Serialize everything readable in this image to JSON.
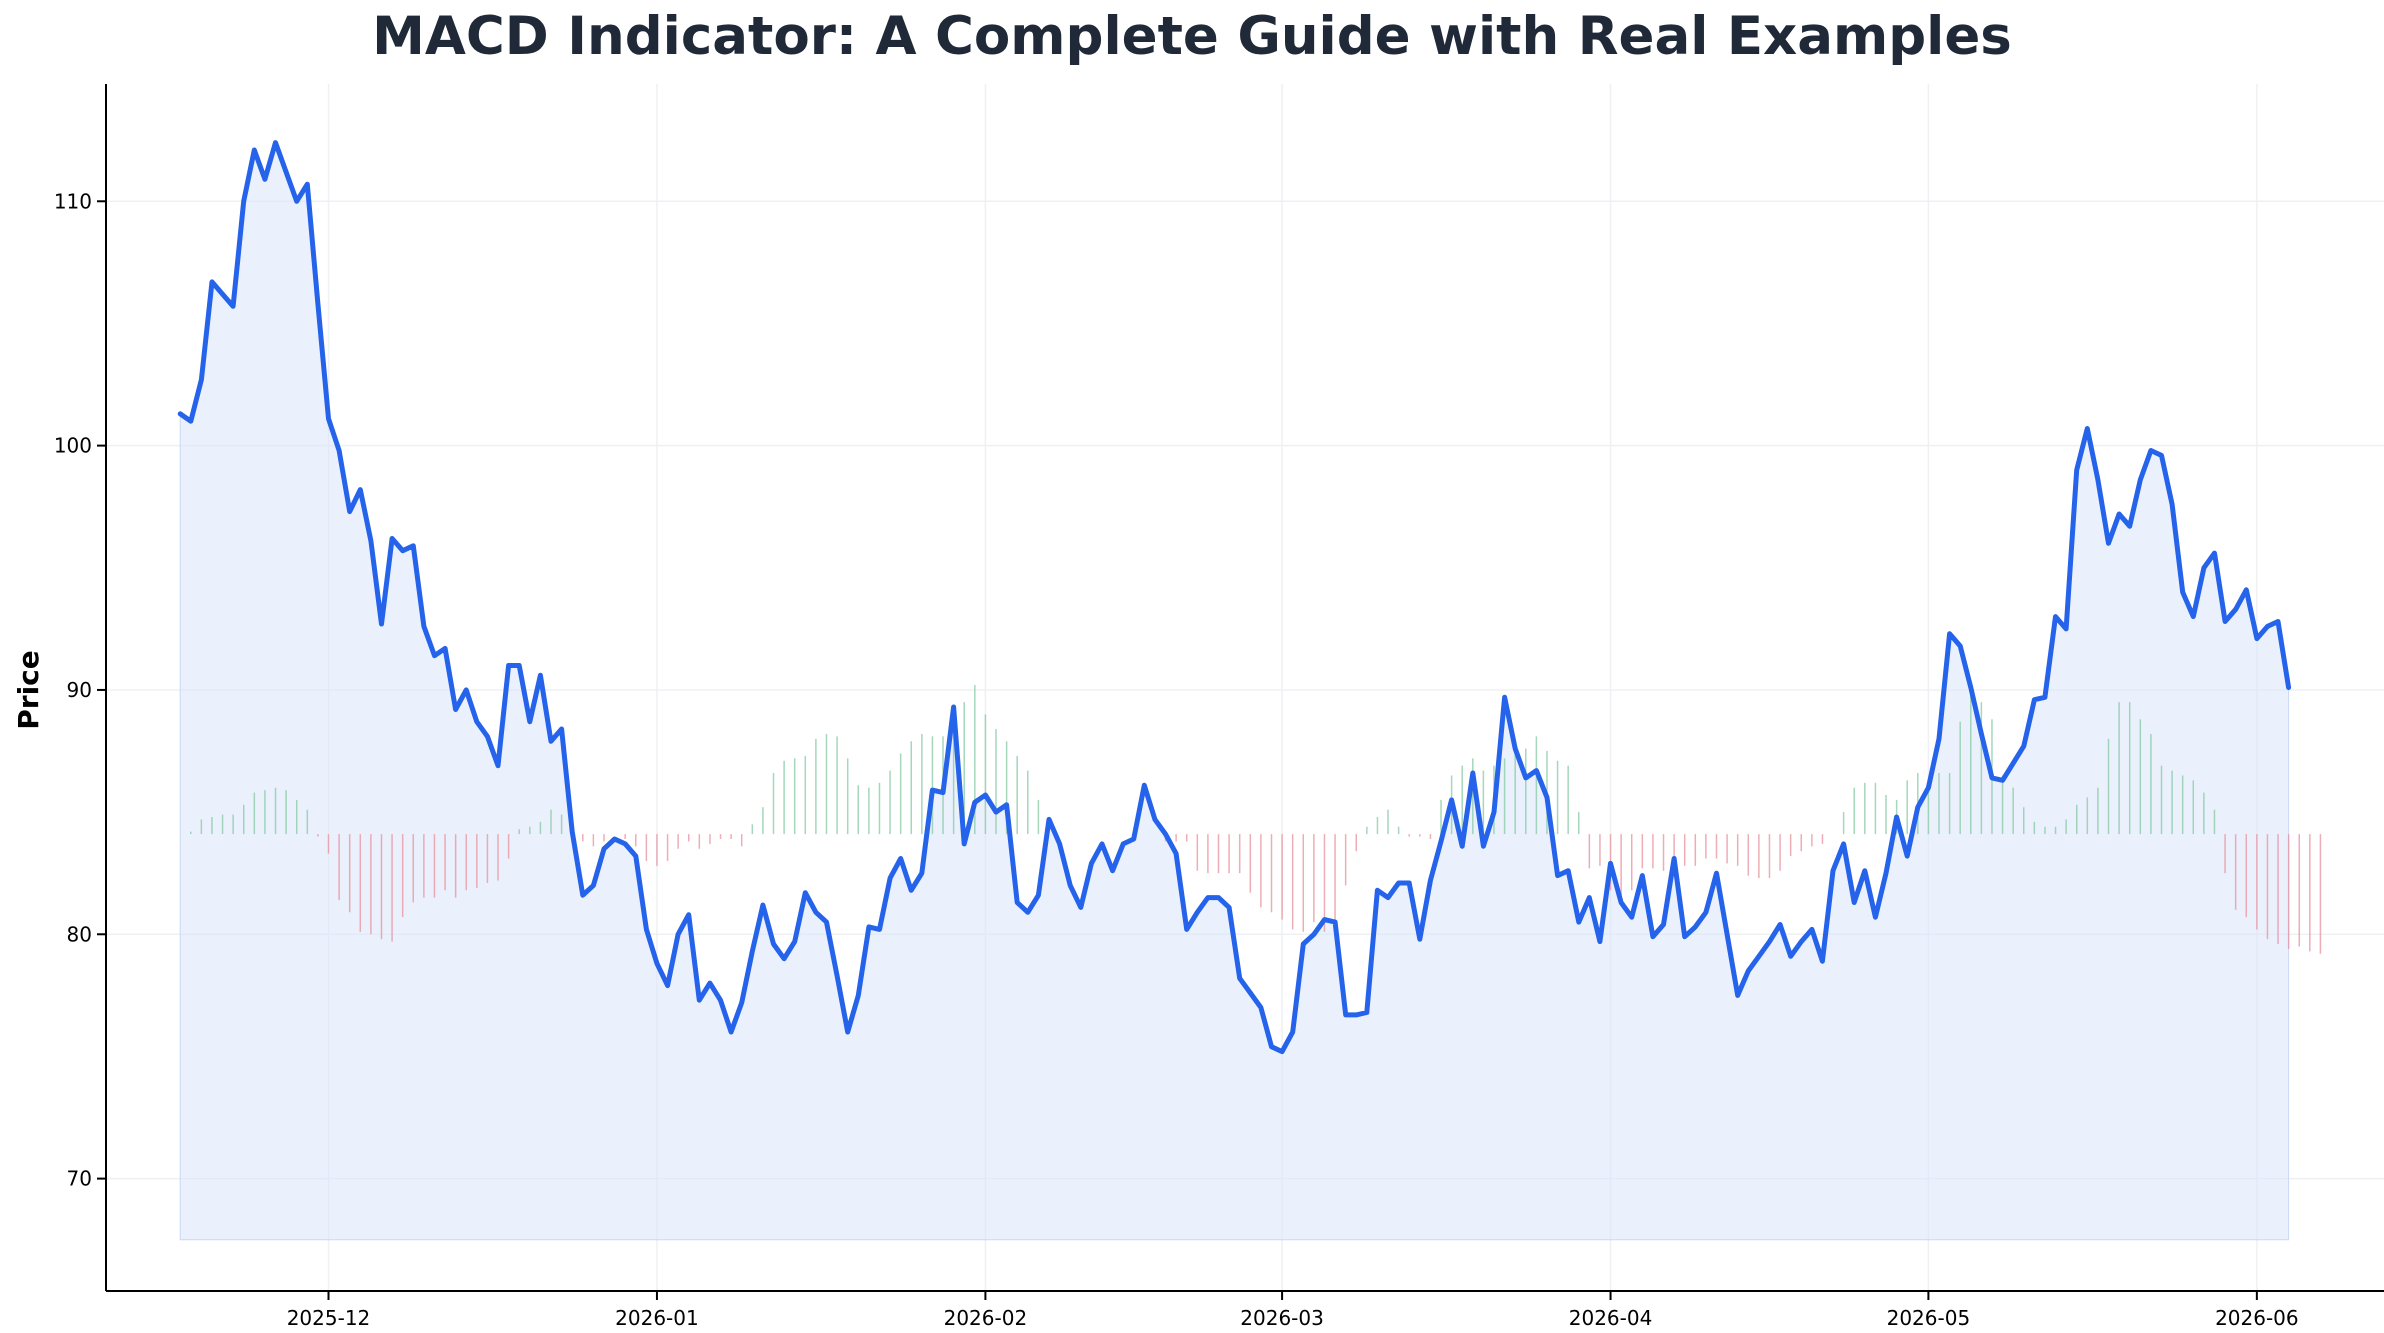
{
  "chart_data": {
    "type": "line",
    "title": "MACD Indicator: A Complete Guide with Real Examples",
    "xlabel": "",
    "ylabel": "Price",
    "grid": true,
    "ylim": [
      65.4,
      114.8
    ],
    "xlim": [
      "2025-11-10",
      "2026-06-13"
    ],
    "y_ticks": [
      70,
      80,
      90,
      100,
      110
    ],
    "x_ticks": [
      "2025-12",
      "2026-01",
      "2026-02",
      "2026-03",
      "2026-04",
      "2026-05",
      "2026-06"
    ],
    "area_baseline": 67.5,
    "histogram_baseline": 84.1,
    "colors": {
      "line": "#2563eb",
      "fill": "#dbe6fa",
      "hist_pos": "#86c9a4",
      "hist_neg": "#e8929d",
      "grid": "#eef0f3"
    },
    "series": [
      {
        "start_date": "2025-11-17",
        "step_days": 1,
        "values": [
          101.3,
          101,
          102.7,
          106.7,
          106.2,
          105.7,
          110,
          112.1,
          110.9,
          112.4,
          111.2,
          110,
          110.7,
          105.8,
          101.1,
          99.8,
          97.3,
          98.2,
          96.1,
          92.7,
          96.2,
          95.7,
          95.9,
          92.6,
          91.4,
          91.7,
          89.2,
          90,
          88.7,
          88.1,
          86.9,
          91,
          91,
          88.7,
          90.6,
          87.9,
          88.4,
          84.2,
          81.6,
          82,
          83.5,
          83.9,
          83.7,
          83.2,
          80.2,
          78.8,
          77.9,
          80,
          80.8,
          77.3,
          78,
          77.3,
          76,
          77.2,
          79.3,
          81.2,
          79.6,
          79,
          79.7,
          81.7,
          80.9,
          80.5,
          78.3,
          76,
          77.5,
          80.3,
          80.2,
          82.3,
          83.1,
          81.8,
          82.5,
          85.9,
          85.8,
          89.3,
          83.7,
          85.4,
          85.7,
          85,
          85.3,
          81.3,
          80.9,
          81.6,
          84.7,
          83.7,
          82,
          81.1,
          82.9,
          83.7,
          82.6,
          83.7,
          83.9,
          86.1,
          84.7,
          84.1,
          83.3,
          80.2,
          80.9,
          81.5,
          81.5,
          81.1,
          78.2,
          77.6,
          77,
          75.4,
          75.2,
          76,
          79.6,
          80,
          80.6,
          80.5,
          76.7,
          76.7,
          76.8,
          81.8,
          81.5,
          82.1,
          82.1,
          79.8,
          82.2,
          83.8,
          85.5,
          83.6,
          86.6,
          83.6,
          85,
          89.7,
          87.6,
          86.4,
          86.7,
          85.6,
          82.4,
          82.6,
          80.5,
          81.5,
          79.7,
          82.9,
          81.3,
          80.7,
          82.4,
          79.9,
          80.4,
          83.1,
          79.9,
          80.3,
          80.9,
          82.5,
          80,
          77.5,
          78.5,
          79.1,
          79.7,
          80.4,
          79.1,
          79.7,
          80.2,
          78.9,
          82.6,
          83.7,
          81.3,
          82.6,
          80.7,
          82.5,
          84.8,
          83.2,
          85.2,
          86,
          88,
          92.3,
          91.8,
          90.1,
          88.2,
          86.4,
          86.3,
          87,
          87.7,
          89.6,
          89.7,
          93,
          92.5,
          99,
          100.7,
          98.6,
          96,
          97.2,
          96.7,
          98.6,
          99.8,
          99.6,
          97.6,
          94,
          93,
          95,
          95.6,
          92.8,
          93.3,
          94.1,
          92.1,
          92.6,
          92.8,
          90.1
        ]
      },
      {
        "name": "histogram",
        "start_date": "2025-11-17",
        "step_days": 1,
        "values": [
          0,
          0.1,
          0.6,
          0.7,
          0.8,
          0.8,
          1.2,
          1.7,
          1.8,
          1.9,
          1.8,
          1.4,
          1,
          -0.1,
          -0.8,
          -2.7,
          -3.2,
          -4,
          -4.1,
          -4.3,
          -4.4,
          -3.4,
          -2.8,
          -2.6,
          -2.6,
          -2.3,
          -2.6,
          -2.3,
          -2.2,
          -2.0,
          -1.9,
          -1.0,
          0.2,
          0.3,
          0.5,
          1,
          0.8,
          0,
          -0.3,
          -0.5,
          -0.3,
          0,
          -0.2,
          -0.5,
          -1.1,
          -1.3,
          -1.1,
          -0.6,
          -0.3,
          -0.6,
          -0.4,
          -0.2,
          -0.2,
          -0.5,
          0.4,
          1.1,
          2.5,
          3,
          3.1,
          3.2,
          3.9,
          4.1,
          4,
          3.1,
          2,
          1.9,
          2.1,
          2.6,
          3.3,
          3.8,
          4.1,
          4,
          4,
          5.1,
          5.4,
          6.1,
          4.9,
          4.3,
          3.8,
          3.2,
          2.6,
          1.4,
          0,
          0,
          0,
          0,
          0,
          0,
          0,
          0,
          0,
          0,
          0,
          -0.3,
          -0.3,
          -0.3,
          -1.5,
          -1.6,
          -1.6,
          -1.6,
          -1.6,
          -2.4,
          -3,
          -3.2,
          -3.5,
          -3.9,
          -4,
          -3.6,
          -4,
          -3.6,
          -2.1,
          -0.7,
          0.3,
          0.7,
          1,
          0.3,
          -0.1,
          -0.1,
          -0.2,
          1.4,
          2.4,
          2.8,
          3.1,
          2.6,
          2.8,
          3.1,
          3.7,
          3.5,
          4,
          3.4,
          3,
          2.8,
          0.9,
          -1.4,
          -1.3,
          -2.3,
          -2.5,
          -2.3,
          -1.4,
          -1.4,
          -1.5,
          -1.5,
          -1.3,
          -1.3,
          -1.0,
          -1.0,
          -1.2,
          -1.3,
          -1.7,
          -1.8,
          -1.8,
          -1.5,
          -0.9,
          -0.7,
          -0.5,
          -0.4,
          0,
          0.9,
          1.9,
          2.1,
          2.1,
          1.6,
          1.4,
          2.2,
          2.5,
          2.2,
          2.5,
          2.5,
          4.6,
          6,
          5.4,
          4.7,
          2.4,
          1.9,
          1.1,
          0.5,
          0.3,
          0.3,
          0.6,
          1.2,
          1.5,
          1.9,
          3.9,
          5.4,
          5.4,
          4.7,
          4.1,
          2.8,
          2.6,
          2.4,
          2.2,
          1.7,
          1,
          -1.6,
          -3.1,
          -3.4,
          -3.9,
          -4.3,
          -4.5,
          -4.7,
          -4.6,
          -4.8,
          -4.9
        ]
      }
    ]
  }
}
